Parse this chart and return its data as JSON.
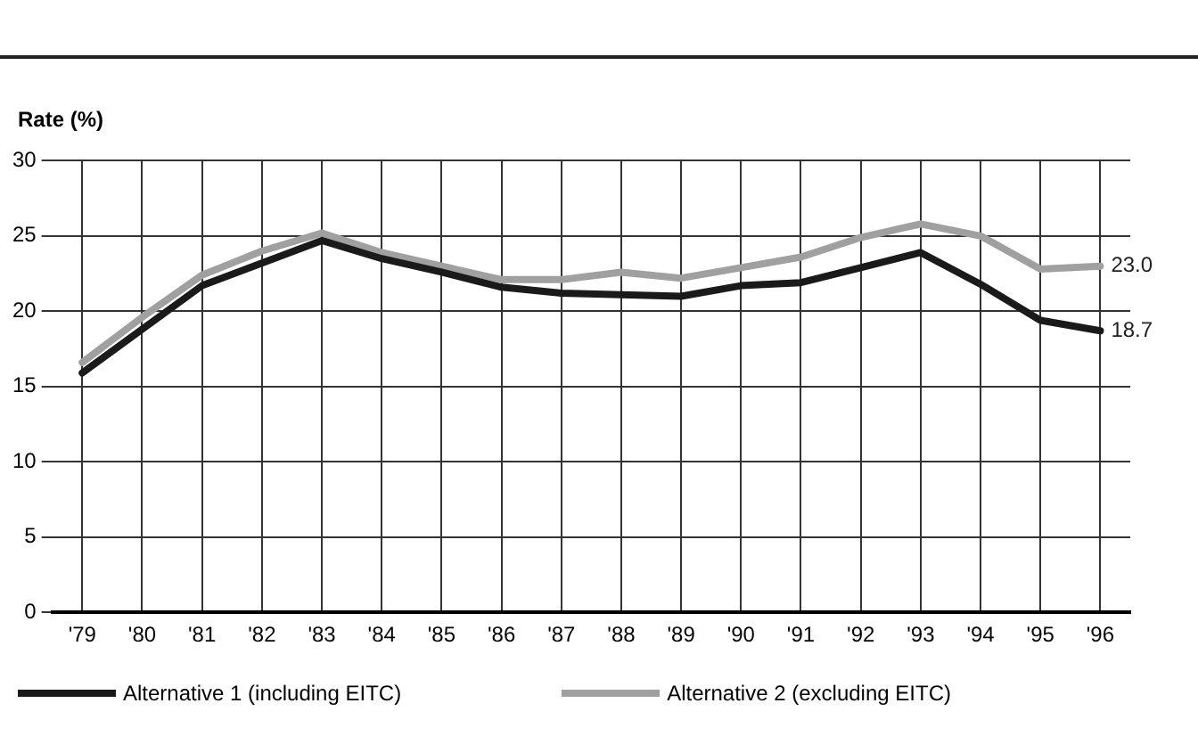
{
  "chart_data": {
    "type": "line",
    "ylabel": "Rate (%)",
    "categories": [
      "'79",
      "'80",
      "'81",
      "'82",
      "'83",
      "'84",
      "'85",
      "'86",
      "'87",
      "'88",
      "'89",
      "'90",
      "'91",
      "'92",
      "'93",
      "'94",
      "'95",
      "'96"
    ],
    "series": [
      {
        "name": "Alternative 1 (including EITC)",
        "color": "#1a1a1a",
        "values": [
          15.9,
          18.8,
          21.7,
          23.2,
          24.7,
          23.5,
          22.6,
          21.6,
          21.2,
          21.1,
          21.0,
          21.7,
          21.9,
          22.9,
          23.9,
          21.8,
          19.4,
          18.7
        ],
        "value_labels": [
          null,
          null,
          null,
          null,
          null,
          null,
          null,
          null,
          null,
          null,
          null,
          null,
          null,
          null,
          null,
          null,
          null,
          "18.7"
        ]
      },
      {
        "name": "Alternative 2 (excluding EITC)",
        "color": "#a0a0a0",
        "values": [
          16.6,
          19.6,
          22.4,
          24.0,
          25.2,
          23.9,
          23.0,
          22.1,
          22.1,
          22.6,
          22.2,
          22.9,
          23.6,
          24.9,
          25.8,
          25.0,
          22.8,
          23.0
        ],
        "value_labels": [
          null,
          null,
          null,
          null,
          null,
          null,
          null,
          null,
          null,
          null,
          null,
          null,
          null,
          null,
          null,
          null,
          null,
          "23.0"
        ]
      }
    ],
    "ylim": [
      0,
      30
    ],
    "yticks": [
      0,
      5,
      10,
      15,
      20,
      25,
      30
    ],
    "grid": true,
    "legend": "bottom left",
    "marker": "none",
    "line_style": "solid"
  }
}
